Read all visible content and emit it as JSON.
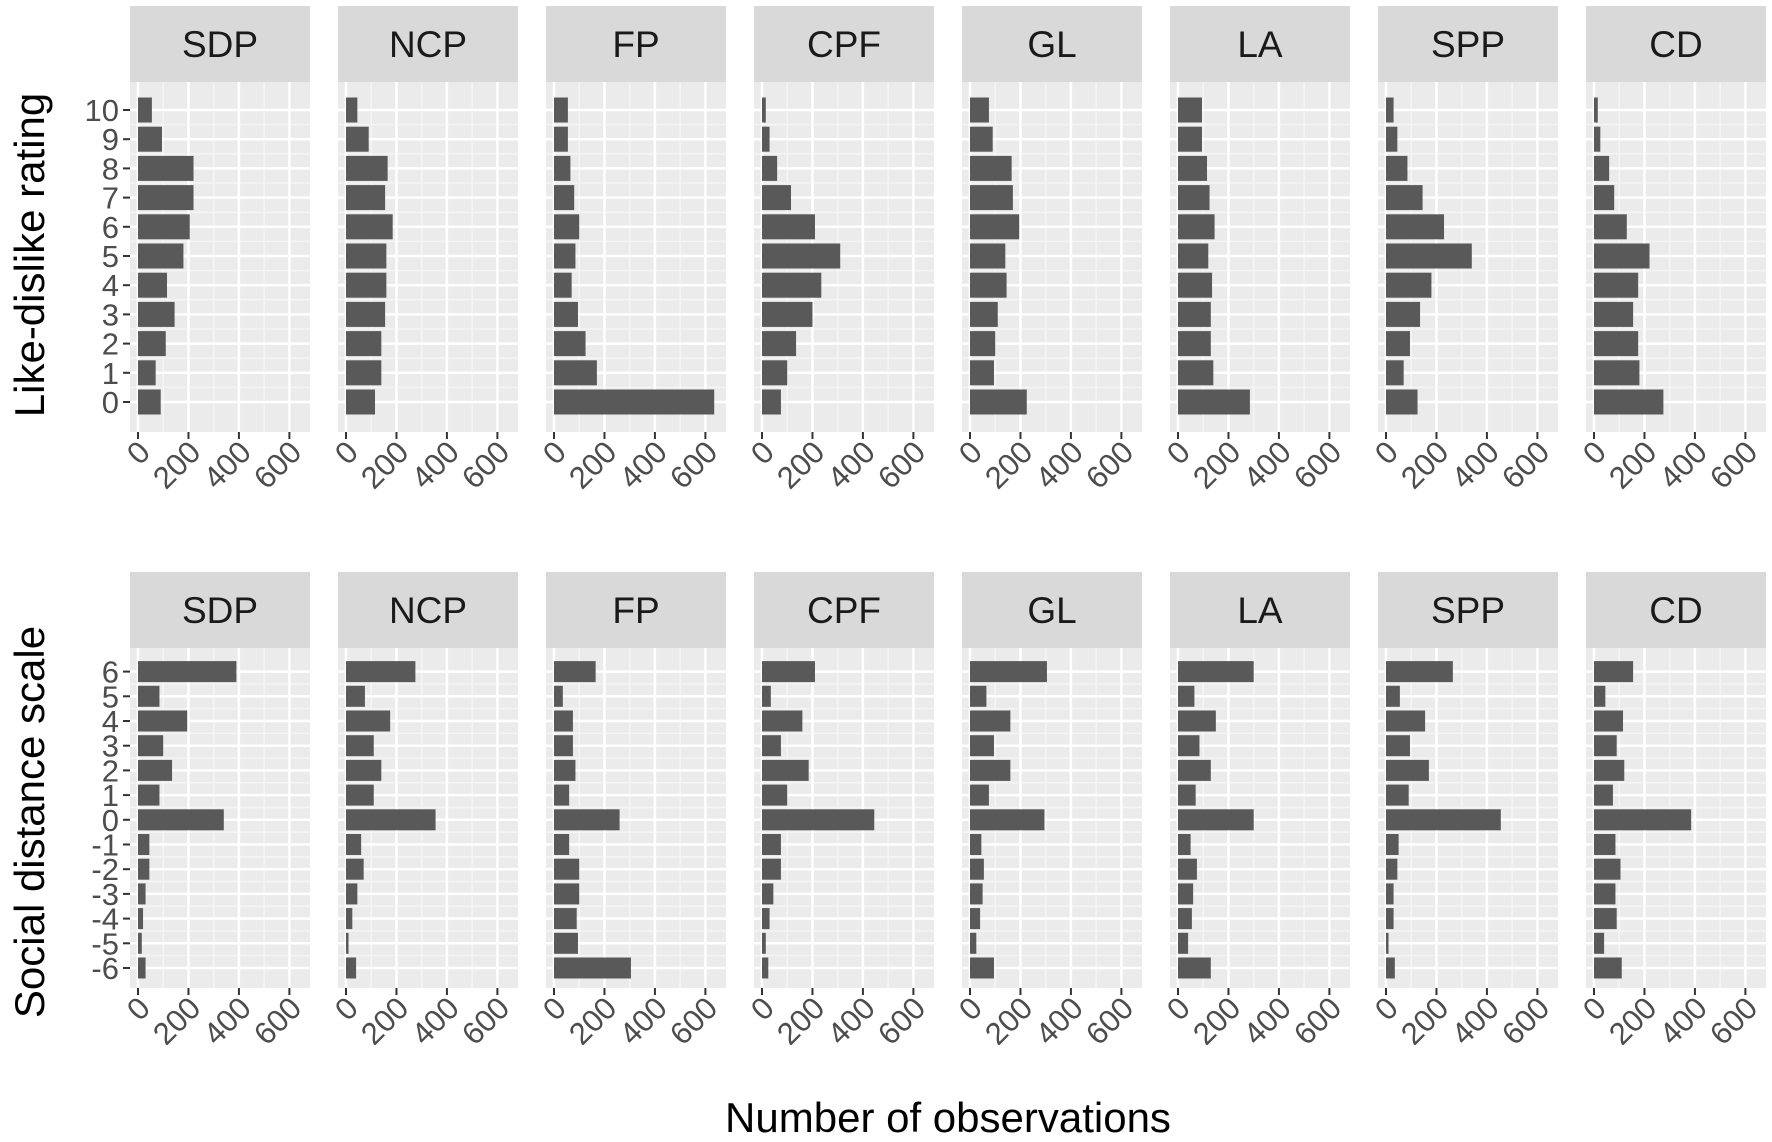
{
  "figure": {
    "xlabel": "Number of observations",
    "colors": {
      "panel_background": "#ebebeb",
      "grid_major": "#ffffff",
      "grid_minor": "#f5f5f5",
      "strip_background": "#d9d9d9",
      "bar": "#595959",
      "tick_text": "#4d4d4d",
      "axis_title": "#000000"
    }
  },
  "chart_data": [
    {
      "type": "bar",
      "orientation": "horizontal",
      "ylabel": "Like-dislike rating",
      "xlabel": "Number of observations",
      "xlim": [
        0,
        650
      ],
      "xticks": [
        "0",
        "200",
        "400",
        "600"
      ],
      "categories": [
        "0",
        "1",
        "2",
        "3",
        "4",
        "5",
        "6",
        "7",
        "8",
        "9",
        "10"
      ],
      "series": [
        {
          "name": "SDP",
          "values": [
            90,
            70,
            110,
            145,
            115,
            180,
            205,
            220,
            220,
            95,
            55
          ]
        },
        {
          "name": "NCP",
          "values": [
            115,
            140,
            140,
            155,
            160,
            160,
            185,
            155,
            165,
            90,
            45
          ]
        },
        {
          "name": "FP",
          "values": [
            635,
            170,
            125,
            95,
            70,
            85,
            100,
            80,
            65,
            55,
            55
          ]
        },
        {
          "name": "CPF",
          "values": [
            75,
            100,
            135,
            200,
            235,
            310,
            210,
            115,
            60,
            30,
            15
          ]
        },
        {
          "name": "GL",
          "values": [
            225,
            95,
            100,
            110,
            145,
            140,
            195,
            170,
            165,
            90,
            75
          ]
        },
        {
          "name": "LA",
          "values": [
            285,
            140,
            130,
            130,
            135,
            120,
            145,
            125,
            115,
            95,
            95
          ]
        },
        {
          "name": "SPP",
          "values": [
            125,
            70,
            95,
            135,
            180,
            340,
            230,
            145,
            85,
            45,
            30
          ]
        },
        {
          "name": "CD",
          "values": [
            275,
            180,
            175,
            155,
            175,
            220,
            130,
            80,
            60,
            25,
            15
          ]
        }
      ]
    },
    {
      "type": "bar",
      "orientation": "horizontal",
      "ylabel": "Social distance scale",
      "xlabel": "Number of observations",
      "xlim": [
        0,
        650
      ],
      "xticks": [
        "0",
        "200",
        "400",
        "600"
      ],
      "categories": [
        "-6",
        "-5",
        "-4",
        "-3",
        "-2",
        "-1",
        "0",
        "1",
        "2",
        "3",
        "4",
        "5",
        "6"
      ],
      "series": [
        {
          "name": "SDP",
          "values": [
            30,
            15,
            20,
            30,
            45,
            45,
            340,
            85,
            135,
            100,
            195,
            85,
            390
          ]
        },
        {
          "name": "NCP",
          "values": [
            40,
            10,
            25,
            45,
            70,
            60,
            355,
            110,
            140,
            110,
            175,
            75,
            275
          ]
        },
        {
          "name": "FP",
          "values": [
            305,
            95,
            90,
            100,
            100,
            60,
            260,
            60,
            85,
            75,
            75,
            35,
            165
          ]
        },
        {
          "name": "CPF",
          "values": [
            25,
            15,
            30,
            45,
            75,
            75,
            445,
            100,
            185,
            75,
            160,
            35,
            210
          ]
        },
        {
          "name": "GL",
          "values": [
            95,
            25,
            40,
            50,
            55,
            45,
            295,
            75,
            160,
            95,
            160,
            65,
            305
          ]
        },
        {
          "name": "LA",
          "values": [
            130,
            40,
            55,
            60,
            75,
            50,
            300,
            70,
            130,
            85,
            150,
            65,
            300
          ]
        },
        {
          "name": "SPP",
          "values": [
            35,
            10,
            30,
            30,
            45,
            50,
            455,
            90,
            170,
            95,
            155,
            55,
            265
          ]
        },
        {
          "name": "CD",
          "values": [
            110,
            40,
            90,
            85,
            105,
            85,
            385,
            75,
            120,
            90,
            115,
            45,
            155
          ]
        }
      ]
    }
  ]
}
